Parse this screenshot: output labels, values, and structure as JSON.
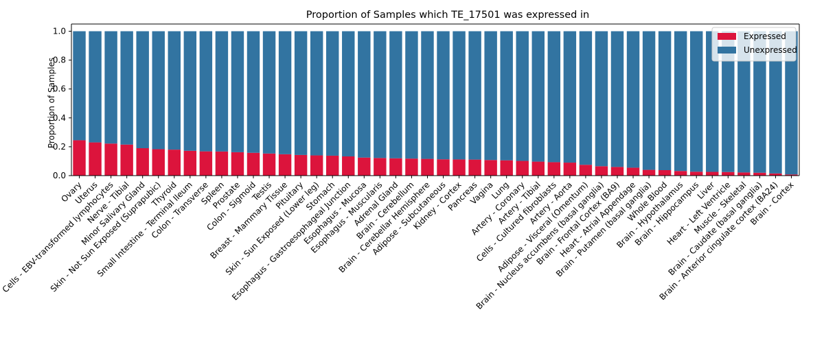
{
  "chart_data": {
    "type": "bar",
    "stacked": true,
    "title": "Proportion of Samples which TE_17501 was expressed in",
    "xlabel": "",
    "ylabel": "Proportion of Samples",
    "ylim": [
      0,
      1.05
    ],
    "yticks": [
      "0.0",
      "0.2",
      "0.4",
      "0.6",
      "0.8",
      "1.0"
    ],
    "legend_position": "top-right",
    "grid": false,
    "categories": [
      "Ovary",
      "Uterus",
      "Cells - EBV-transformed lymphocytes",
      "Nerve - Tibial",
      "Minor Salivary Gland",
      "Skin - Not Sun Exposed (Suprapubic)",
      "Thyroid",
      "Small Intestine - Terminal Ileum",
      "Colon - Transverse",
      "Spleen",
      "Prostate",
      "Colon - Sigmoid",
      "Testis",
      "Breast - Mammary Tissue",
      "Pituitary",
      "Skin - Sun Exposed (Lower leg)",
      "Stomach",
      "Esophagus - Gastroesophageal Junction",
      "Esophagus - Mucosa",
      "Esophagus - Muscularis",
      "Adrenal Gland",
      "Brain - Cerebellum",
      "Brain - Cerebellar Hemisphere",
      "Adipose - Subcutaneous",
      "Kidney - Cortex",
      "Pancreas",
      "Vagina",
      "Lung",
      "Artery - Coronary",
      "Artery - Tibial",
      "Cells - Cultured fibroblasts",
      "Artery - Aorta",
      "Adipose - Visceral (Omentum)",
      "Brain - Nucleus accumbens (basal ganglia)",
      "Brain - Frontal Cortex (BA9)",
      "Heart - Atrial Appendage",
      "Brain - Putamen (basal ganglia)",
      "Whole Blood",
      "Brain - Hypothalamus",
      "Brain - Hippocampus",
      "Liver",
      "Heart - Left Ventricle",
      "Muscle - Skeletal",
      "Brain - Caudate (basal ganglia)",
      "Brain - Anterior cingulate cortex (BA24)",
      "Brain - Cortex"
    ],
    "series": [
      {
        "name": "Expressed",
        "color": "#dc143c",
        "values": [
          0.245,
          0.23,
          0.222,
          0.215,
          0.19,
          0.183,
          0.18,
          0.172,
          0.168,
          0.167,
          0.162,
          0.158,
          0.153,
          0.148,
          0.143,
          0.14,
          0.138,
          0.133,
          0.125,
          0.122,
          0.12,
          0.118,
          0.116,
          0.113,
          0.112,
          0.111,
          0.108,
          0.106,
          0.102,
          0.097,
          0.093,
          0.09,
          0.075,
          0.065,
          0.06,
          0.055,
          0.04,
          0.038,
          0.032,
          0.027,
          0.026,
          0.025,
          0.022,
          0.02,
          0.015,
          0.008
        ]
      },
      {
        "name": "Unexpressed",
        "color": "#3274a1",
        "values": [
          0.755,
          0.77,
          0.778,
          0.785,
          0.81,
          0.817,
          0.82,
          0.828,
          0.832,
          0.833,
          0.838,
          0.842,
          0.847,
          0.852,
          0.857,
          0.86,
          0.862,
          0.867,
          0.875,
          0.878,
          0.88,
          0.882,
          0.884,
          0.887,
          0.888,
          0.889,
          0.892,
          0.894,
          0.898,
          0.903,
          0.907,
          0.91,
          0.925,
          0.935,
          0.94,
          0.945,
          0.96,
          0.962,
          0.968,
          0.973,
          0.974,
          0.975,
          0.978,
          0.98,
          0.985,
          0.992
        ]
      }
    ]
  }
}
